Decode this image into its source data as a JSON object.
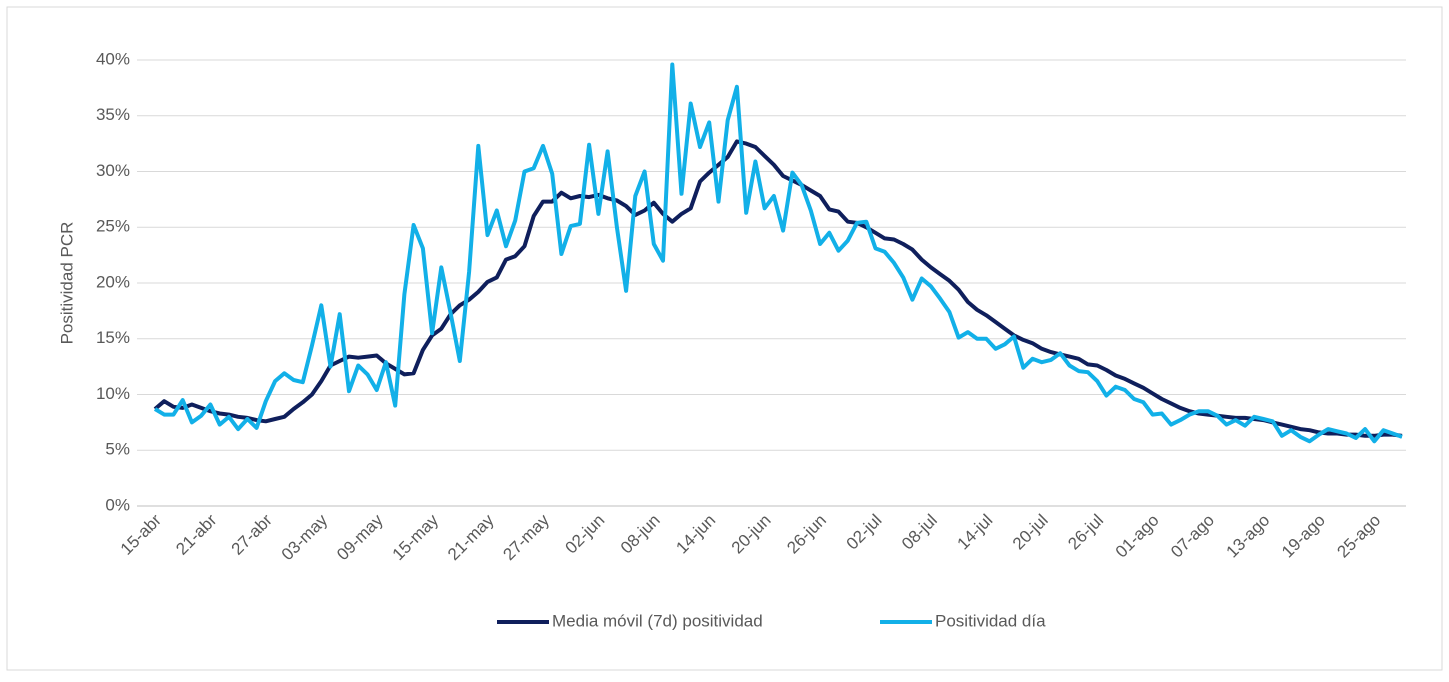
{
  "chart_data": {
    "type": "line",
    "y_label": "Positividad PCR",
    "categories": [
      "15-abr",
      null,
      null,
      null,
      null,
      null,
      "21-abr",
      null,
      null,
      null,
      null,
      null,
      "27-abr",
      null,
      null,
      null,
      null,
      null,
      "03-may",
      null,
      null,
      null,
      null,
      null,
      "09-may",
      null,
      null,
      null,
      null,
      null,
      "15-may",
      null,
      null,
      null,
      null,
      null,
      "21-may",
      null,
      null,
      null,
      null,
      null,
      "27-may",
      null,
      null,
      null,
      null,
      null,
      "02-jun",
      null,
      null,
      null,
      null,
      null,
      "08-jun",
      null,
      null,
      null,
      null,
      null,
      "14-jun",
      null,
      null,
      null,
      null,
      null,
      "20-jun",
      null,
      null,
      null,
      null,
      null,
      "26-jun",
      null,
      null,
      null,
      null,
      null,
      "02-jul",
      null,
      null,
      null,
      null,
      null,
      "08-jul",
      null,
      null,
      null,
      null,
      null,
      "14-jul",
      null,
      null,
      null,
      null,
      null,
      "20-jul",
      null,
      null,
      null,
      null,
      null,
      "26-jul",
      null,
      null,
      null,
      null,
      null,
      "01-ago",
      null,
      null,
      null,
      null,
      null,
      "07-ago",
      null,
      null,
      null,
      null,
      null,
      "13-ago",
      null,
      null,
      null,
      null,
      null,
      "19-ago",
      null,
      null,
      null,
      null,
      null,
      "25-ago",
      null,
      null,
      null
    ],
    "series": [
      {
        "name": "Media móvil (7d) positividad",
        "color": "#0f1f5c",
        "values": [
          8.7,
          9.4,
          8.9,
          8.8,
          9.1,
          8.8,
          8.5,
          8.3,
          8.2,
          8.0,
          7.9,
          7.7,
          7.6,
          7.8,
          8.0,
          8.7,
          9.3,
          10.0,
          11.2,
          12.6,
          13.0,
          13.4,
          13.3,
          13.4,
          13.5,
          12.8,
          12.3,
          11.8,
          11.9,
          14.0,
          15.3,
          15.9,
          17.2,
          18.0,
          18.5,
          19.2,
          20.1,
          20.5,
          22.1,
          22.4,
          23.3,
          26.0,
          27.3,
          27.3,
          28.1,
          27.6,
          27.8,
          27.7,
          27.9,
          27.6,
          27.4,
          26.9,
          26.1,
          26.5,
          27.2,
          26.2,
          25.5,
          26.2,
          26.7,
          29.1,
          29.9,
          30.6,
          31.3,
          32.7,
          32.5,
          32.2,
          31.4,
          30.6,
          29.6,
          29.2,
          28.8,
          28.3,
          27.8,
          26.6,
          26.4,
          25.5,
          25.4,
          25.0,
          24.5,
          24.0,
          23.9,
          23.5,
          23.0,
          22.1,
          21.4,
          20.8,
          20.2,
          19.4,
          18.3,
          17.6,
          17.1,
          16.5,
          15.9,
          15.3,
          14.9,
          14.6,
          14.1,
          13.8,
          13.6,
          13.4,
          13.2,
          12.7,
          12.6,
          12.2,
          11.7,
          11.4,
          11.0,
          10.6,
          10.1,
          9.6,
          9.2,
          8.8,
          8.5,
          8.3,
          8.2,
          8.1,
          8.0,
          7.9,
          7.9,
          7.8,
          7.7,
          7.5,
          7.3,
          7.1,
          6.9,
          6.8,
          6.6,
          6.5,
          6.5,
          6.4,
          6.4,
          6.3,
          6.3,
          6.4,
          6.4,
          6.3
        ]
      },
      {
        "name": "Positividad día",
        "color": "#12b0e8",
        "values": [
          8.7,
          8.2,
          8.2,
          9.5,
          7.5,
          8.1,
          9.1,
          7.3,
          8.0,
          6.9,
          7.8,
          7.0,
          9.4,
          11.2,
          11.9,
          11.3,
          11.1,
          14.4,
          18.0,
          12.5,
          17.2,
          10.3,
          12.6,
          11.8,
          10.4,
          12.9,
          9.0,
          19.0,
          25.2,
          23.1,
          15.5,
          21.4,
          17.3,
          13.0,
          21.0,
          32.3,
          24.3,
          26.5,
          23.3,
          25.6,
          30.0,
          30.3,
          32.3,
          29.8,
          22.6,
          25.1,
          25.3,
          32.4,
          26.2,
          31.8,
          25.0,
          19.3,
          27.8,
          30.0,
          23.5,
          22.0,
          39.6,
          28.0,
          36.1,
          32.2,
          34.4,
          27.3,
          34.6,
          37.6,
          26.3,
          30.9,
          26.7,
          27.8,
          24.7,
          29.9,
          28.8,
          26.5,
          23.5,
          24.5,
          22.9,
          23.8,
          25.4,
          25.5,
          23.1,
          22.8,
          21.8,
          20.5,
          18.5,
          20.4,
          19.7,
          18.6,
          17.4,
          15.1,
          15.6,
          15.0,
          15.0,
          14.1,
          14.5,
          15.2,
          12.4,
          13.2,
          12.9,
          13.1,
          13.7,
          12.6,
          12.1,
          12.0,
          11.2,
          9.9,
          10.7,
          10.4,
          9.6,
          9.3,
          8.2,
          8.3,
          7.3,
          7.7,
          8.2,
          8.5,
          8.5,
          8.1,
          7.3,
          7.7,
          7.2,
          8.0,
          7.8,
          7.6,
          6.3,
          6.8,
          6.2,
          5.8,
          6.4,
          6.9,
          6.7,
          6.5,
          6.1,
          6.9,
          5.8,
          6.8,
          6.5,
          6.2
        ]
      }
    ],
    "ylim": [
      0,
      40
    ],
    "yticks": [
      {
        "value": 0,
        "label": "0%"
      },
      {
        "value": 5,
        "label": "5%"
      },
      {
        "value": 10,
        "label": "10%"
      },
      {
        "value": 15,
        "label": "15%"
      },
      {
        "value": 20,
        "label": "20%"
      },
      {
        "value": 25,
        "label": "25%"
      },
      {
        "value": 30,
        "label": "30%"
      },
      {
        "value": 35,
        "label": "35%"
      },
      {
        "value": 40,
        "label": "40%"
      }
    ],
    "grid": true,
    "legend": "bottom"
  }
}
